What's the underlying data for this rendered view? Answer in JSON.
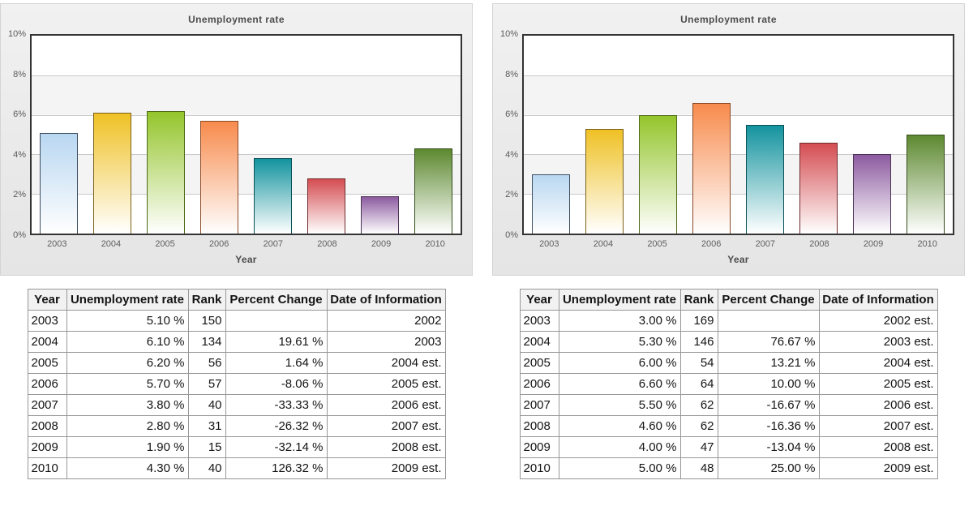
{
  "style": {
    "bar_fills": [
      "#b9d7f1",
      "#efc125",
      "#94c52c",
      "#f78b4d",
      "#13939e",
      "#d44d52",
      "#8c5ba0",
      "#5d8930"
    ],
    "bar_borders": [
      "#3d4f60",
      "#7c611a",
      "#4e6b19",
      "#8a4a26",
      "#0a5158",
      "#6f2a2d",
      "#4c3257",
      "#344e1b"
    ],
    "bar_fade_to": "#ffffff",
    "plot_border": "#333333",
    "gridline": "#c9c9c9",
    "band": "#f4f4f4",
    "panel_bg": "#ebebeb"
  },
  "chart_data": [
    {
      "type": "bar",
      "title": "Unemployment rate",
      "xlabel": "Year",
      "ylabel": "",
      "categories": [
        "2003",
        "2004",
        "2005",
        "2006",
        "2007",
        "2008",
        "2009",
        "2010"
      ],
      "values": [
        5.1,
        6.1,
        6.2,
        5.7,
        3.8,
        2.8,
        1.9,
        4.3
      ],
      "ylim": [
        0,
        10
      ],
      "yticks_top_to_bottom": [
        "10%",
        "8%",
        "6%",
        "4%",
        "2%",
        "0%"
      ],
      "grid": true,
      "legend": false
    },
    {
      "type": "bar",
      "title": "Unemployment rate",
      "xlabel": "Year",
      "ylabel": "",
      "categories": [
        "2003",
        "2004",
        "2005",
        "2006",
        "2007",
        "2008",
        "2009",
        "2010"
      ],
      "values": [
        3.0,
        5.3,
        6.0,
        6.6,
        5.5,
        4.6,
        4.0,
        5.0
      ],
      "ylim": [
        0,
        10
      ],
      "yticks_top_to_bottom": [
        "10%",
        "8%",
        "6%",
        "4%",
        "2%",
        "0%"
      ],
      "grid": true,
      "legend": false
    }
  ],
  "tables": [
    {
      "headers": [
        "Year",
        "Unemployment rate",
        "Rank",
        "Percent Change",
        "Date of Information"
      ],
      "rows": [
        [
          "2003",
          "5.10 %",
          "150",
          "",
          "2002"
        ],
        [
          "2004",
          "6.10 %",
          "134",
          "19.61 %",
          "2003"
        ],
        [
          "2005",
          "6.20 %",
          "56",
          "1.64 %",
          "2004 est."
        ],
        [
          "2006",
          "5.70 %",
          "57",
          "-8.06 %",
          "2005 est."
        ],
        [
          "2007",
          "3.80 %",
          "40",
          "-33.33 %",
          "2006 est."
        ],
        [
          "2008",
          "2.80 %",
          "31",
          "-26.32 %",
          "2007 est."
        ],
        [
          "2009",
          "1.90 %",
          "15",
          "-32.14 %",
          "2008 est."
        ],
        [
          "2010",
          "4.30 %",
          "40",
          "126.32 %",
          "2009 est."
        ]
      ]
    },
    {
      "headers": [
        "Year",
        "Unemployment rate",
        "Rank",
        "Percent Change",
        "Date of Information"
      ],
      "rows": [
        [
          "2003",
          "3.00 %",
          "169",
          "",
          "2002 est."
        ],
        [
          "2004",
          "5.30 %",
          "146",
          "76.67 %",
          "2003 est."
        ],
        [
          "2005",
          "6.00 %",
          "54",
          "13.21 %",
          "2004 est."
        ],
        [
          "2006",
          "6.60 %",
          "64",
          "10.00 %",
          "2005 est."
        ],
        [
          "2007",
          "5.50 %",
          "62",
          "-16.67 %",
          "2006 est."
        ],
        [
          "2008",
          "4.60 %",
          "62",
          "-16.36 %",
          "2007 est."
        ],
        [
          "2009",
          "4.00 %",
          "47",
          "-13.04 %",
          "2008 est."
        ],
        [
          "2010",
          "5.00 %",
          "48",
          "25.00 %",
          "2009 est."
        ]
      ]
    }
  ]
}
